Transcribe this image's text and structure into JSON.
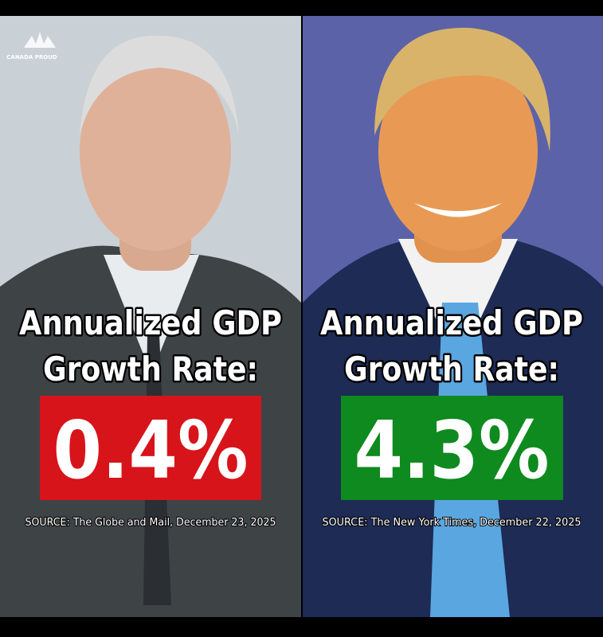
{
  "watermark": "CANADA PROUD",
  "panels": [
    {
      "heading_line1": "Annualized GDP",
      "heading_line2": "Growth Rate:",
      "value": "0.4%",
      "source": "SOURCE: The Globe and Mail, December 23, 2025"
    },
    {
      "heading_line1": "Annualized GDP",
      "heading_line2": "Growth Rate:",
      "value": "4.3%",
      "source": "SOURCE: The New York Times, December 22, 2025"
    }
  ]
}
